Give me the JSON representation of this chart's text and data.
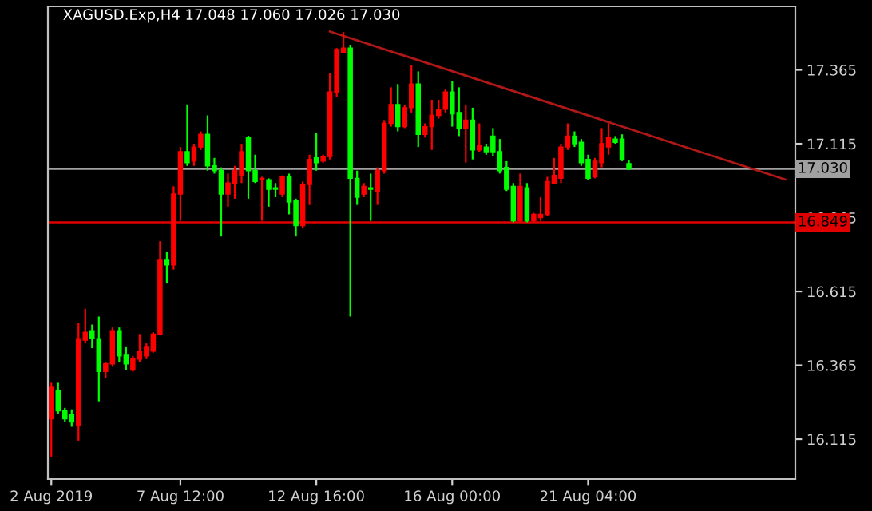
{
  "chart_data": {
    "type": "candlestick",
    "title": "XAGUSD.Exp,H4 17.048 17.060 17.026 17.030",
    "categories": [
      "2 Aug 2019",
      null,
      null,
      null,
      null,
      null,
      null,
      null,
      null,
      null,
      null,
      null,
      null,
      null,
      null,
      null,
      null,
      null,
      null,
      "7 Aug 12:00",
      null,
      null,
      null,
      null,
      null,
      null,
      null,
      null,
      null,
      null,
      null,
      null,
      null,
      null,
      null,
      null,
      null,
      null,
      null,
      "12 Aug 16:00",
      null,
      null,
      null,
      null,
      null,
      null,
      null,
      null,
      null,
      null,
      null,
      null,
      null,
      null,
      null,
      null,
      null,
      null,
      null,
      "16 Aug 00:00",
      null,
      null,
      null,
      null,
      null,
      null,
      null,
      null,
      null,
      null,
      null,
      null,
      null,
      null,
      null,
      null,
      null,
      null,
      null,
      "21 Aug 04:00",
      null,
      null,
      null,
      null,
      null,
      null,
      null,
      null,
      null,
      null,
      null,
      null,
      null,
      null,
      null,
      null,
      null,
      null,
      null,
      null,
      null,
      null,
      null,
      null,
      null,
      null,
      null,
      null,
      null,
      null
    ],
    "ohlc": [
      [
        16.184,
        16.306,
        16.056,
        16.29
      ],
      [
        16.28,
        16.306,
        16.2,
        16.211
      ],
      [
        16.211,
        16.221,
        16.173,
        16.184
      ],
      [
        16.2,
        16.216,
        16.157,
        16.173
      ],
      [
        16.163,
        16.509,
        16.11,
        16.455
      ],
      [
        16.45,
        16.556,
        16.439,
        16.477
      ],
      [
        16.482,
        16.503,
        16.423,
        16.455
      ],
      [
        16.455,
        16.53,
        16.243,
        16.344
      ],
      [
        16.344,
        16.376,
        16.322,
        16.37
      ],
      [
        16.37,
        16.493,
        16.36,
        16.482
      ],
      [
        16.482,
        16.493,
        16.376,
        16.397
      ],
      [
        16.402,
        16.429,
        16.349,
        16.37
      ],
      [
        16.349,
        16.397,
        16.344,
        16.386
      ],
      [
        16.386,
        16.471,
        16.376,
        16.413
      ],
      [
        16.397,
        16.439,
        16.386,
        16.429
      ],
      [
        16.413,
        16.477,
        16.408,
        16.471
      ],
      [
        16.471,
        16.785,
        16.466,
        16.721
      ],
      [
        16.721,
        16.748,
        16.642,
        16.705
      ],
      [
        16.705,
        16.971,
        16.689,
        16.945
      ],
      [
        16.945,
        17.104,
        16.854,
        17.088
      ],
      [
        17.088,
        17.248,
        17.04,
        17.051
      ],
      [
        17.056,
        17.115,
        17.04,
        17.104
      ],
      [
        17.104,
        17.157,
        17.094,
        17.147
      ],
      [
        17.147,
        17.211,
        17.024,
        17.04
      ],
      [
        17.04,
        17.067,
        17.014,
        17.024
      ],
      [
        17.024,
        17.035,
        16.801,
        16.945
      ],
      [
        16.945,
        17.014,
        16.902,
        16.982
      ],
      [
        16.982,
        17.04,
        16.929,
        17.024
      ],
      [
        17.008,
        17.115,
        16.982,
        17.088
      ],
      [
        17.136,
        17.142,
        16.929,
        17.024
      ],
      [
        17.024,
        17.078,
        16.982,
        16.987
      ],
      [
        16.993,
        17.003,
        16.854,
        16.998
      ],
      [
        16.993,
        16.998,
        16.902,
        16.961
      ],
      [
        16.966,
        16.982,
        16.934,
        16.961
      ],
      [
        16.945,
        17.008,
        16.934,
        17.003
      ],
      [
        17.003,
        17.014,
        16.876,
        16.918
      ],
      [
        16.923,
        16.929,
        16.801,
        16.838
      ],
      [
        16.838,
        16.987,
        16.828,
        16.977
      ],
      [
        16.977,
        17.078,
        16.908,
        17.062
      ],
      [
        17.067,
        17.152,
        17.024,
        17.051
      ],
      [
        17.056,
        17.078,
        17.051,
        17.072
      ],
      [
        17.072,
        17.354,
        17.062,
        17.29
      ],
      [
        17.29,
        17.439,
        17.274,
        17.434
      ],
      [
        17.423,
        17.493,
        17.423,
        17.439
      ],
      [
        17.439,
        17.45,
        16.53,
        16.998
      ],
      [
        16.998,
        17.024,
        16.908,
        16.934
      ],
      [
        16.945,
        16.982,
        16.934,
        16.971
      ],
      [
        16.966,
        17.014,
        16.854,
        16.961
      ],
      [
        16.955,
        17.035,
        16.908,
        17.024
      ],
      [
        17.024,
        17.195,
        17.014,
        17.184
      ],
      [
        17.184,
        17.306,
        17.173,
        17.248
      ],
      [
        17.248,
        17.317,
        17.157,
        17.173
      ],
      [
        17.173,
        17.248,
        17.168,
        17.237
      ],
      [
        17.237,
        17.381,
        17.221,
        17.317
      ],
      [
        17.317,
        17.36,
        17.104,
        17.147
      ],
      [
        17.147,
        17.184,
        17.136,
        17.173
      ],
      [
        17.173,
        17.264,
        17.094,
        17.211
      ],
      [
        17.211,
        17.264,
        17.2,
        17.232
      ],
      [
        17.232,
        17.301,
        17.221,
        17.29
      ],
      [
        17.29,
        17.328,
        17.173,
        17.216
      ],
      [
        17.221,
        17.306,
        17.141,
        17.168
      ],
      [
        17.168,
        17.248,
        17.051,
        17.195
      ],
      [
        17.195,
        17.237,
        17.062,
        17.094
      ],
      [
        17.094,
        17.184,
        17.088,
        17.11
      ],
      [
        17.104,
        17.115,
        17.078,
        17.088
      ],
      [
        17.141,
        17.168,
        17.072,
        17.088
      ],
      [
        17.088,
        17.131,
        17.014,
        17.024
      ],
      [
        17.035,
        17.056,
        16.955,
        16.961
      ],
      [
        16.971,
        16.982,
        16.849,
        16.854
      ],
      [
        16.854,
        17.014,
        16.849,
        16.971
      ],
      [
        16.966,
        16.982,
        16.849,
        16.854
      ],
      [
        16.854,
        16.881,
        16.849,
        16.876
      ],
      [
        16.865,
        16.934,
        16.854,
        16.876
      ],
      [
        16.876,
        17.003,
        16.87,
        16.987
      ],
      [
        16.982,
        17.067,
        16.982,
        17.008
      ],
      [
        16.998,
        17.115,
        16.982,
        17.104
      ],
      [
        17.104,
        17.184,
        17.094,
        17.141
      ],
      [
        17.141,
        17.157,
        17.104,
        17.115
      ],
      [
        17.12,
        17.131,
        17.04,
        17.051
      ],
      [
        17.062,
        17.078,
        16.993,
        16.998
      ],
      [
        17.003,
        17.067,
        16.998,
        17.056
      ],
      [
        17.051,
        17.168,
        17.035,
        17.115
      ],
      [
        17.104,
        17.184,
        17.078,
        17.136
      ],
      [
        17.131,
        17.141,
        17.115,
        17.12
      ],
      [
        17.131,
        17.147,
        17.056,
        17.062
      ],
      [
        17.048,
        17.06,
        17.026,
        17.03
      ],
      null,
      null,
      null,
      null,
      null,
      null,
      null,
      null,
      null,
      null,
      null,
      null,
      null,
      null,
      null,
      null,
      null,
      null,
      null,
      null,
      null,
      null,
      null,
      null
    ],
    "colors": [
      "#ff0000",
      "#00ff00",
      "#00ff00",
      "#00ff00",
      "#ff0000",
      "#ff0000",
      "#00ff00",
      "#00ff00",
      "#ff0000",
      "#ff0000",
      "#00ff00",
      "#00ff00",
      "#ff0000",
      "#ff0000",
      "#ff0000",
      "#ff0000",
      "#ff0000",
      "#00ff00",
      "#ff0000",
      "#ff0000",
      "#00ff00",
      "#ff0000",
      "#ff0000",
      "#00ff00",
      "#00ff00",
      "#00ff00",
      "#ff0000",
      "#ff0000",
      "#ff0000",
      "#00ff00",
      "#00ff00",
      "#ff0000",
      "#00ff00",
      "#00ff00",
      "#ff0000",
      "#00ff00",
      "#00ff00",
      "#ff0000",
      "#ff0000",
      "#00ff00",
      "#ff0000",
      "#ff0000",
      "#ff0000",
      "#ff0000",
      "#00ff00",
      "#00ff00",
      "#ff0000",
      "#00ff00",
      "#ff0000",
      "#ff0000",
      "#ff0000",
      "#00ff00",
      "#ff0000",
      "#ff0000",
      "#00ff00",
      "#ff0000",
      "#ff0000",
      "#ff0000",
      "#ff0000",
      "#00ff00",
      "#00ff00",
      "#ff0000",
      "#00ff00",
      "#ff0000",
      "#00ff00",
      "#00ff00",
      "#00ff00",
      "#00ff00",
      "#00ff00",
      "#ff0000",
      "#00ff00",
      "#ff0000",
      "#ff0000",
      "#ff0000",
      "#ff0000",
      "#ff0000",
      "#ff0000",
      "#00ff00",
      "#00ff00",
      "#00ff00",
      "#ff0000",
      "#ff0000",
      "#ff0000",
      "#00ff00",
      "#00ff00",
      "#00ff00",
      null,
      null,
      null,
      null,
      null,
      null,
      null,
      null,
      null,
      null,
      null,
      null,
      null,
      null,
      null,
      null,
      null,
      null,
      null,
      null,
      null,
      null,
      null,
      null
    ],
    "series": [
      {
        "type": "line",
        "color": "#b01818",
        "values": [
          null,
          null,
          null,
          null,
          null,
          null,
          null,
          null,
          null,
          null,
          null,
          null,
          null,
          null,
          null,
          null,
          null,
          null,
          null,
          null,
          null,
          null,
          null,
          null,
          null,
          null,
          null,
          null,
          null,
          null,
          null,
          null,
          null,
          null,
          null,
          null,
          null,
          null,
          null,
          null,
          null,
          17.495,
          null,
          null,
          null,
          null,
          null,
          null,
          null,
          null,
          null,
          null,
          null,
          null,
          null,
          null,
          null,
          null,
          null,
          null,
          null,
          null,
          null,
          null,
          null,
          null,
          null,
          null,
          null,
          null,
          null,
          null,
          null,
          null,
          null,
          null,
          null,
          null,
          null,
          null,
          null,
          null,
          null,
          null,
          null,
          null,
          null,
          null,
          null,
          null,
          null,
          null,
          null,
          null,
          null,
          null,
          null,
          null,
          null,
          null,
          null,
          null,
          null,
          null,
          null,
          null,
          null,
          null,
          16.994,
          null
        ]
      }
    ],
    "ylim": [
      15.98,
      17.58
    ],
    "yticks": [
      16.115,
      16.365,
      16.615,
      16.865,
      17.115,
      17.365
    ],
    "ref_lines": [
      {
        "axis": "y",
        "value": 17.03,
        "label": "17.030",
        "color": "#a0a0a0"
      },
      {
        "axis": "y",
        "value": 16.849,
        "label": "16.849",
        "color": "#e00000"
      }
    ],
    "grid": false,
    "legend": false
  }
}
